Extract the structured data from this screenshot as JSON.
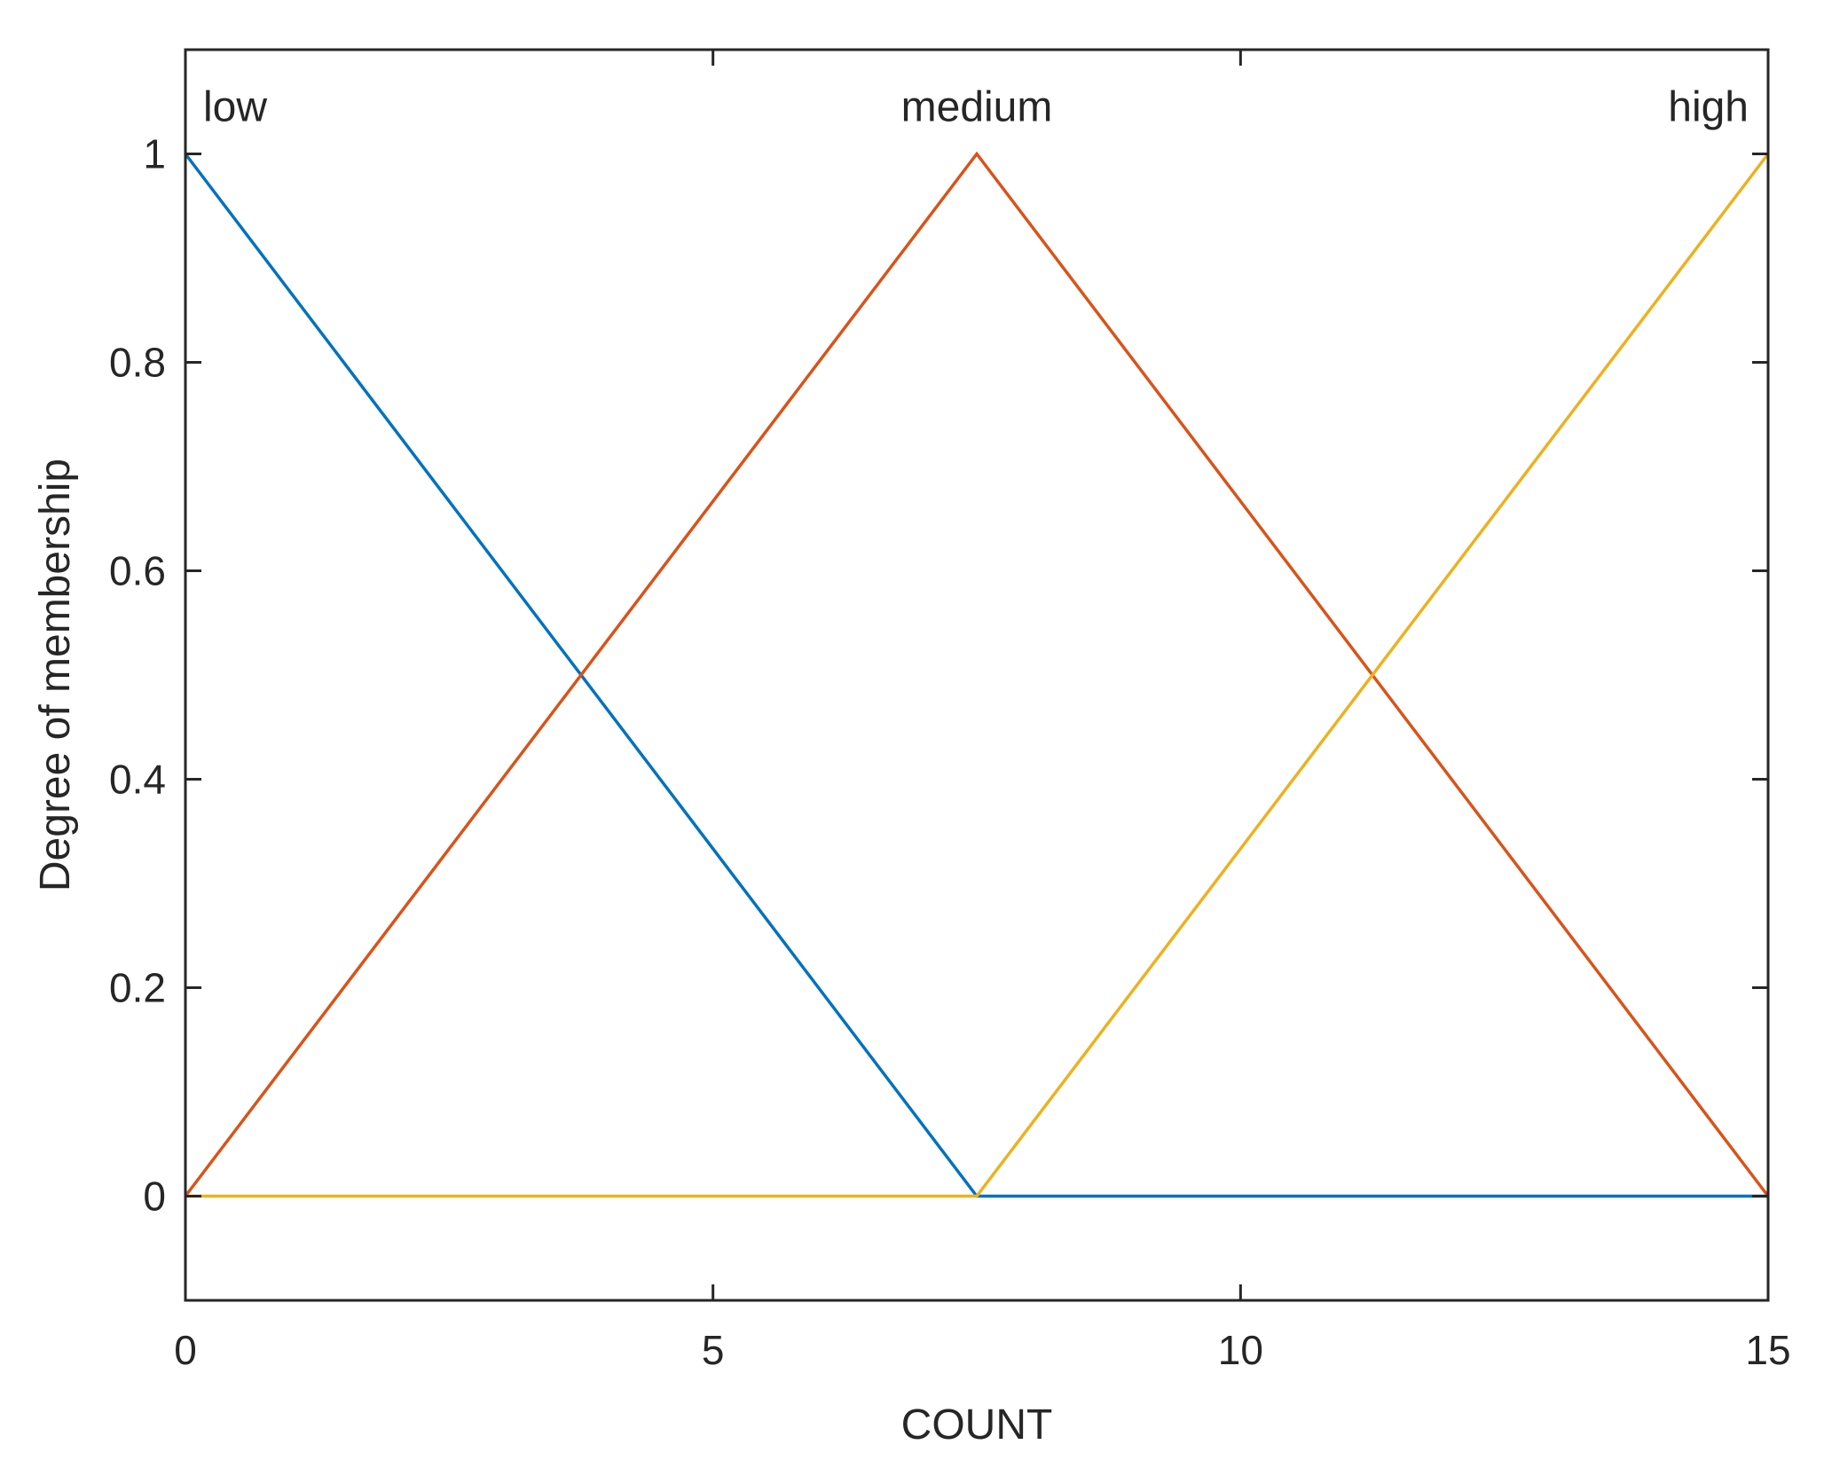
{
  "chart_data": {
    "type": "line",
    "title": "",
    "xlabel": "COUNT",
    "ylabel": "Degree of membership",
    "xlim": [
      0,
      15
    ],
    "ylim": [
      -0.1,
      1.1
    ],
    "xticks": [
      0,
      5,
      10,
      15
    ],
    "yticks": [
      0,
      0.2,
      0.4,
      0.6,
      0.8,
      1
    ],
    "grid": false,
    "series": [
      {
        "name": "low",
        "color": "#0072BD",
        "x": [
          0,
          7.5,
          15
        ],
        "y": [
          1,
          0,
          0
        ]
      },
      {
        "name": "medium",
        "color": "#D95319",
        "x": [
          0,
          7.5,
          15
        ],
        "y": [
          0,
          1,
          0
        ]
      },
      {
        "name": "high",
        "color": "#EDB120",
        "x": [
          0,
          7.5,
          15
        ],
        "y": [
          0,
          0,
          1
        ]
      }
    ]
  }
}
